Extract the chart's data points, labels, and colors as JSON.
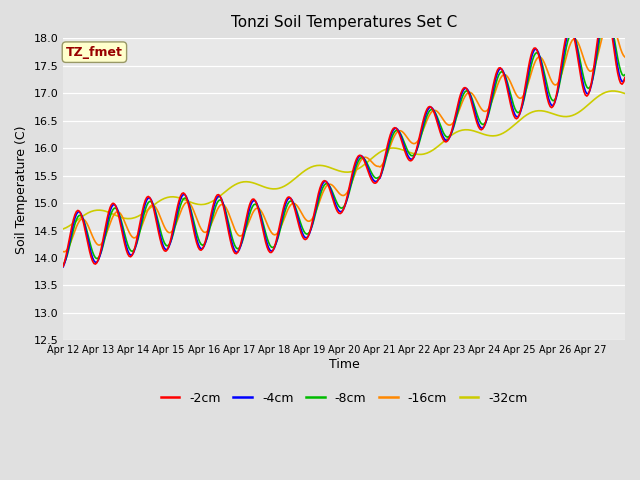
{
  "title": "Tonzi Soil Temperatures Set C",
  "xlabel": "Time",
  "ylabel": "Soil Temperature (C)",
  "annotation": "TZ_fmet",
  "ylim": [
    12.5,
    18.0
  ],
  "yticks": [
    12.5,
    13.0,
    13.5,
    14.0,
    14.5,
    15.0,
    15.5,
    16.0,
    16.5,
    17.0,
    17.5,
    18.0
  ],
  "xtick_labels": [
    "Apr 12",
    "Apr 13",
    "Apr 14",
    "Apr 15",
    "Apr 16",
    "Apr 17",
    "Apr 18",
    "Apr 19",
    "Apr 20",
    "Apr 21",
    "Apr 22",
    "Apr 23",
    "Apr 24",
    "Apr 25",
    "Apr 26",
    "Apr 27"
  ],
  "series": {
    "-2cm": {
      "color": "#ff0000",
      "linewidth": 1.2
    },
    "-4cm": {
      "color": "#0000ff",
      "linewidth": 1.2
    },
    "-8cm": {
      "color": "#00bb00",
      "linewidth": 1.2
    },
    "-16cm": {
      "color": "#ff8800",
      "linewidth": 1.2
    },
    "-32cm": {
      "color": "#cccc00",
      "linewidth": 1.2
    }
  },
  "bg_color": "#e0e0e0",
  "plot_bg": "#e8e8e8",
  "grid_color": "#ffffff",
  "annotation_bg": "#ffffcc",
  "annotation_fg": "#990000",
  "annotation_border": "#999966"
}
